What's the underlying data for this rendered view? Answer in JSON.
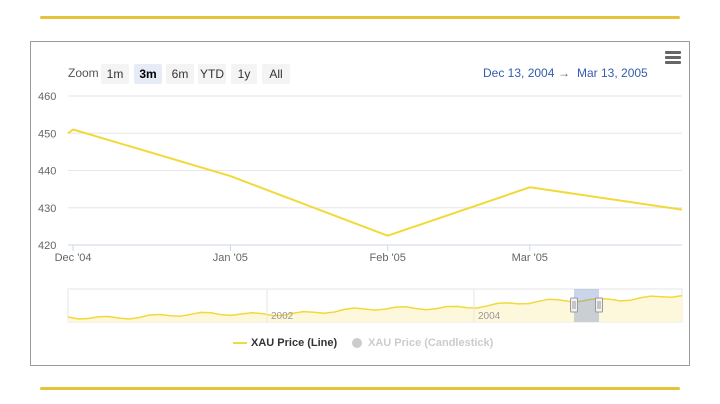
{
  "toolbar": {
    "zoom_label": "Zoom",
    "buttons": [
      "1m",
      "3m",
      "6m",
      "YTD",
      "1y",
      "All"
    ],
    "active_button": "3m",
    "range_from": "Dec 13, 2004",
    "range_arrow": "→",
    "range_to": "Mar 13, 2005",
    "menu_icon": "hamburger-menu-icon"
  },
  "colors": {
    "line": "#f2d93a",
    "navigator_fill": "#fdf8dc",
    "rule": "#e8c23a",
    "range_text": "#335cad",
    "legend_hidden": "#cccccc"
  },
  "chart_data": {
    "type": "line",
    "title": "",
    "xlabel": "",
    "ylabel": "",
    "ylim": [
      420,
      460
    ],
    "y_ticks": [
      420,
      430,
      440,
      450,
      460
    ],
    "x_tick_labels": [
      "Dec '04",
      "Jan '05",
      "Feb '05",
      "Mar '05"
    ],
    "x_tick_dates": [
      "2004-12-01",
      "2005-01-01",
      "2005-02-01",
      "2005-03-01"
    ],
    "xlim": [
      "2004-11-30",
      "2005-03-31"
    ],
    "grid": "horizontal",
    "series": [
      {
        "name": "XAU Price (Line)",
        "visible": true,
        "x": [
          "2004-11-30",
          "2004-12-01",
          "2005-01-01",
          "2005-02-01",
          "2005-03-01",
          "2005-03-31"
        ],
        "y": [
          450,
          451,
          438.5,
          422.5,
          435.5,
          429.5
        ]
      },
      {
        "name": "XAU Price (Candlestick)",
        "visible": false
      }
    ],
    "navigator": {
      "tick_labels": [
        "2002",
        "2004"
      ],
      "selected_range": [
        "2004-12-13",
        "2005-03-13"
      ]
    },
    "legend": "bottom-center"
  }
}
